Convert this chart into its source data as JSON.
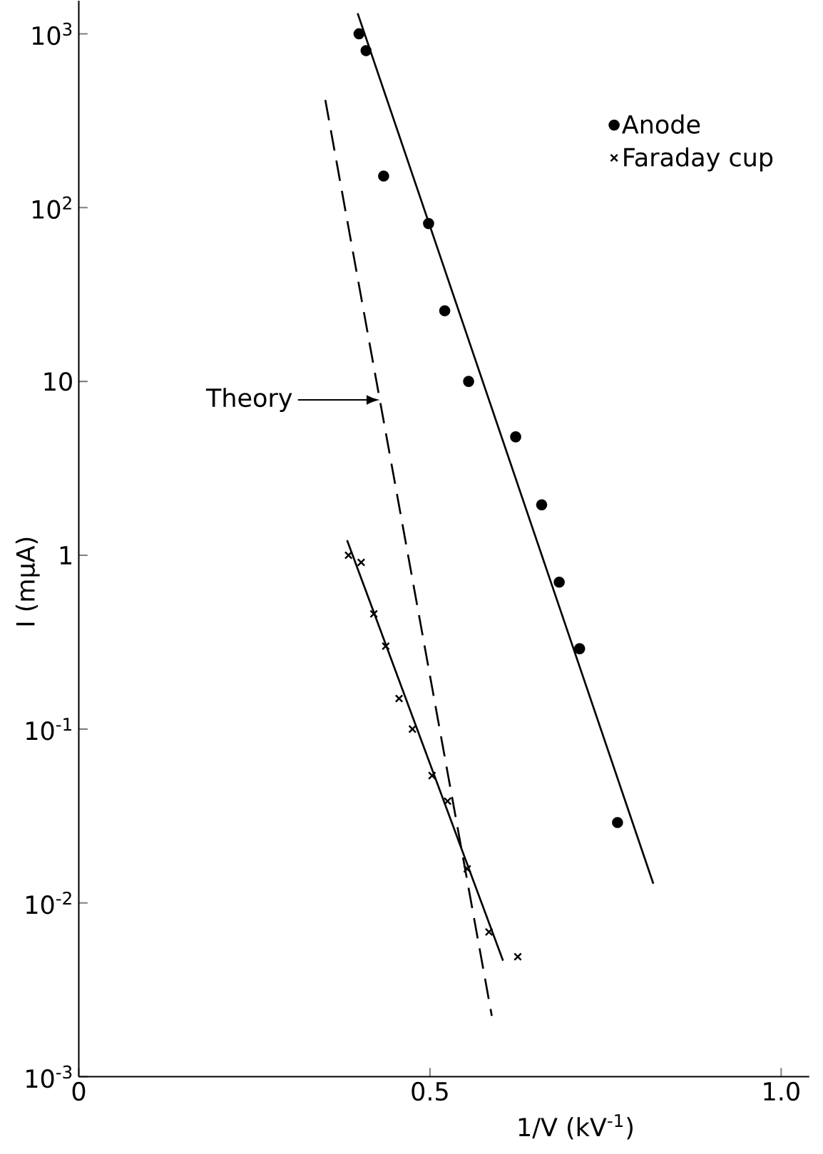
{
  "chart_data": {
    "type": "scatter",
    "xlabel": "1/V  (kV$^{-1}$)",
    "ylabel": "I  (mμA)",
    "log": "y",
    "legend": "top right",
    "grid": false,
    "xlim": [
      0,
      1.04
    ],
    "ylim": [
      0.001,
      1550
    ],
    "xticks": [
      0,
      0.5,
      {
        "value": 1,
        "label": "1.0"
      }
    ],
    "yticks": [
      {
        "value": 0.001,
        "label": "10$^{-3}$"
      },
      {
        "value": 0.01,
        "label": "10$^{-2}$"
      },
      {
        "value": 0.1,
        "label": "10$^{-1}$"
      },
      1,
      10,
      {
        "value": 100,
        "label": "10$^{2}$"
      },
      {
        "value": 1000,
        "label": "10$^{3}$"
      }
    ],
    "annotations": [
      "Theory"
    ],
    "series": [
      {
        "name": "Anode",
        "marker": "circle",
        "color": "#000000",
        "x": [
          0.399,
          0.409,
          0.434,
          0.498,
          0.521,
          0.555,
          0.622,
          0.659,
          0.684,
          0.713,
          0.767
        ],
        "values": [
          1000,
          800,
          152,
          81,
          25.5,
          10,
          4.8,
          1.95,
          0.7,
          0.29,
          0.029
        ]
      },
      {
        "name": "Faraday cup",
        "marker": "cross",
        "color": "#000000",
        "x": [
          0.384,
          0.402,
          0.42,
          0.437,
          0.456,
          0.475,
          0.503,
          0.525,
          0.553,
          0.584,
          0.625
        ],
        "values": [
          1.0,
          0.91,
          0.46,
          0.3,
          0.15,
          0.1,
          0.054,
          0.0385,
          0.0157,
          0.0068,
          0.0049
        ]
      },
      {
        "type": "line",
        "line_style": "solid",
        "color": "#000000",
        "x": [
          0.397,
          0.818
        ],
        "values": [
          1313,
          0.0129
        ]
      },
      {
        "type": "line",
        "line_style": "solid",
        "color": "#000000",
        "x": [
          0.382,
          0.604
        ],
        "values": [
          1.22,
          0.00465
        ]
      },
      {
        "type": "line",
        "line_style": "dashed",
        "color": "#000000",
        "x": [
          0.351,
          0.588
        ],
        "values": [
          416,
          0.00224
        ]
      }
    ]
  }
}
